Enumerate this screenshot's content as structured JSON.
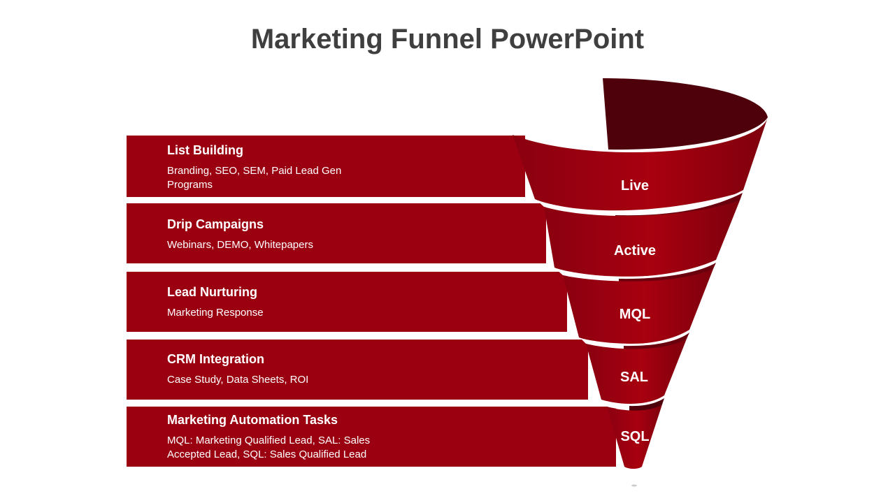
{
  "title": "Marketing Funnel PowerPoint",
  "colors": {
    "band": "#9b0011",
    "cone": "#a3000f",
    "inner": "#4e000b",
    "rim": "#6a000d",
    "title": "#3f3f3f"
  },
  "stages": [
    {
      "label": "Live",
      "title": "List Building",
      "description": "Branding, SEO, SEM, Paid Lead Gen Programs"
    },
    {
      "label": "Active",
      "title": "Drip Campaigns",
      "description": "Webinars, DEMO, Whitepapers"
    },
    {
      "label": "MQL",
      "title": "Lead Nurturing",
      "description": "Marketing Response"
    },
    {
      "label": "SAL",
      "title": "CRM Integration",
      "description": "Case Study, Data Sheets, ROI"
    },
    {
      "label": "SQL",
      "title": "Marketing Automation Tasks",
      "description": "MQL: Marketing Qualified Lead, SAL: Sales Accepted Lead, SQL: Sales Qualified Lead"
    }
  ]
}
